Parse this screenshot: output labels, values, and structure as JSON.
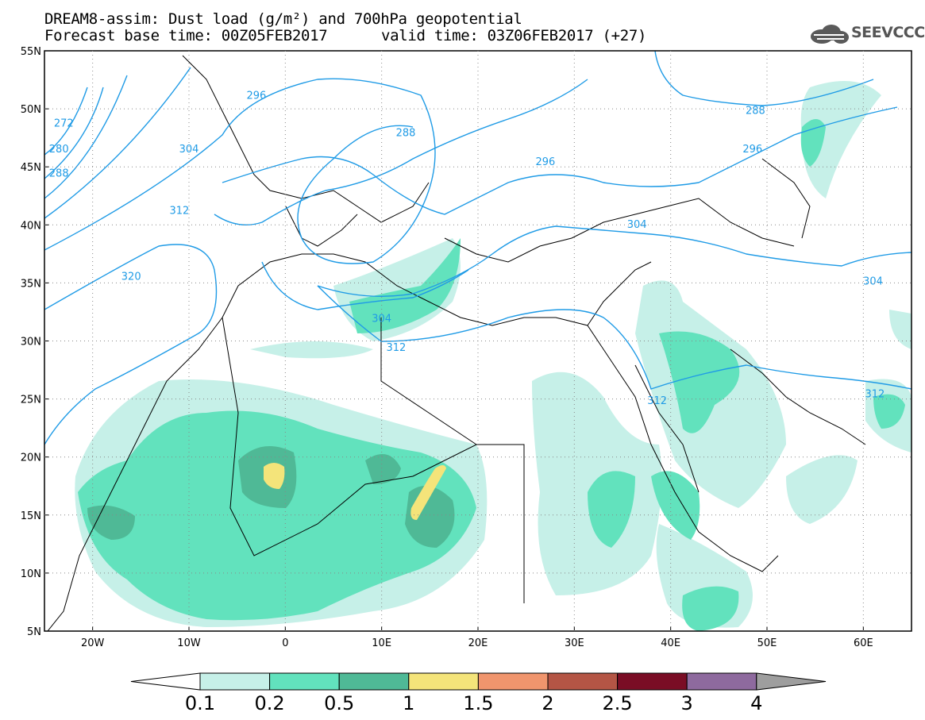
{
  "header": {
    "title_line1": "DREAM8-assim: Dust load (g/m²) and 700hPa geopotential",
    "base_time_text": "Forecast base time: 00Z05FEB2017",
    "valid_time_text": "valid time: 03Z06FEB2017 (+27)"
  },
  "logo": {
    "text": "SEEVCCC",
    "icon": "cloud-icon"
  },
  "axes": {
    "lat_labels": [
      "55N",
      "50N",
      "45N",
      "40N",
      "35N",
      "30N",
      "25N",
      "20N",
      "15N",
      "10N",
      "5N"
    ],
    "lon_labels": [
      "20W",
      "10W",
      "0",
      "10E",
      "20E",
      "30E",
      "40E",
      "50E",
      "60E"
    ]
  },
  "contour_labels": [
    {
      "text": "296",
      "lon": -3,
      "lat": 51.2
    },
    {
      "text": "288",
      "lon": 12.5,
      "lat": 48.0
    },
    {
      "text": "304",
      "lon": -10,
      "lat": 46.6
    },
    {
      "text": "312",
      "lon": -11,
      "lat": 41.3
    },
    {
      "text": "320",
      "lon": -16,
      "lat": 35.6
    },
    {
      "text": "304",
      "lon": 10,
      "lat": 32.0
    },
    {
      "text": "312",
      "lon": 11.5,
      "lat": 29.5
    },
    {
      "text": "296",
      "lon": 27,
      "lat": 45.5
    },
    {
      "text": "304",
      "lon": 36.5,
      "lat": 40.1
    },
    {
      "text": "304",
      "lon": 61,
      "lat": 35.2
    },
    {
      "text": "312",
      "lon": 61.2,
      "lat": 25.5
    },
    {
      "text": "312",
      "lon": 38.6,
      "lat": 24.9
    },
    {
      "text": "288",
      "lon": 48.8,
      "lat": 49.9
    },
    {
      "text": "296",
      "lon": 48.5,
      "lat": 46.6
    },
    {
      "text": "272",
      "lon": -23,
      "lat": 48.8
    },
    {
      "text": "280",
      "lon": -23.5,
      "lat": 46.6
    },
    {
      "text": "288",
      "lon": -23.5,
      "lat": 44.5
    }
  ],
  "colorbar": {
    "labels": [
      "0.1",
      "0.2",
      "0.5",
      "1",
      "1.5",
      "2",
      "2.5",
      "3",
      "4"
    ],
    "colors": [
      "#c6f0e8",
      "#62e2bd",
      "#4fb996",
      "#f4e47a",
      "#f0956d",
      "#b45545",
      "#7a0d25",
      "#8e6a9e",
      "#9e9e9e"
    ]
  },
  "colors": {
    "contour": "#1f9be6",
    "coast": "#000000"
  }
}
